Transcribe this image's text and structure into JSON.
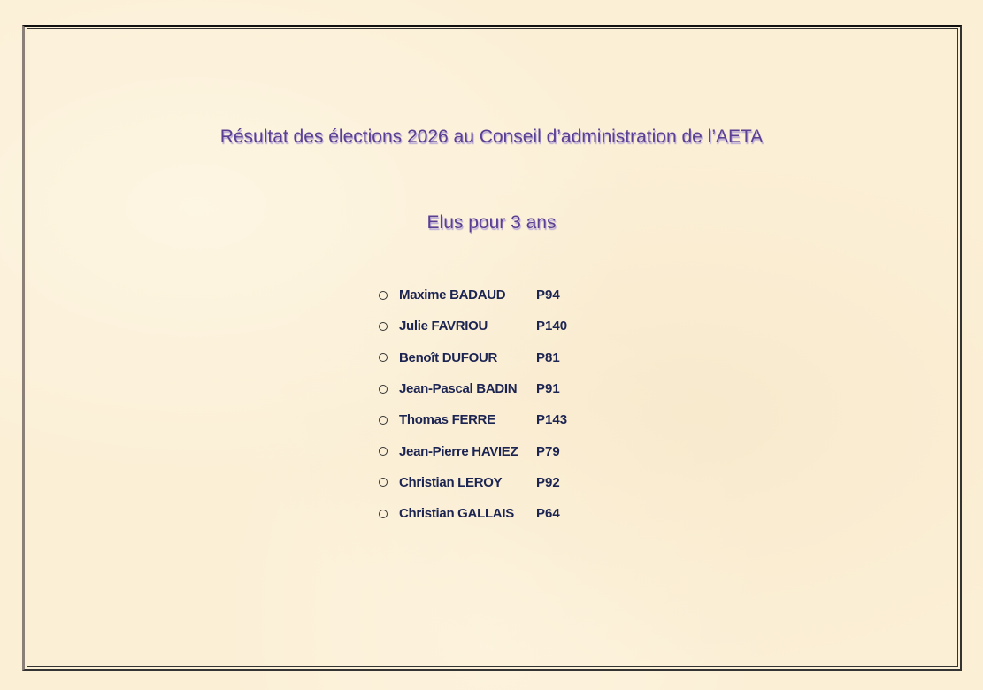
{
  "title": "Résultat des élections 2026 au Conseil d’administration de l’AETA",
  "subtitle": "Elus pour 3 ans",
  "elected": [
    {
      "name": "Maxime BADAUD",
      "code": "P94"
    },
    {
      "name": "Julie FAVRIOU",
      "code": "P140"
    },
    {
      "name": "Benoît DUFOUR",
      "code": "P81"
    },
    {
      "name": "Jean-Pascal BADIN",
      "code": "P91"
    },
    {
      "name": "Thomas FERRE",
      "code": "P143"
    },
    {
      "name": "Jean-Pierre HAVIEZ",
      "code": "P79"
    },
    {
      "name": "Christian LEROY",
      "code": "P92"
    },
    {
      "name": "Christian GALLAIS",
      "code": "P64"
    }
  ],
  "colors": {
    "heading": "#5b3f92",
    "text": "#1c2452",
    "background": "#fbefd6"
  }
}
